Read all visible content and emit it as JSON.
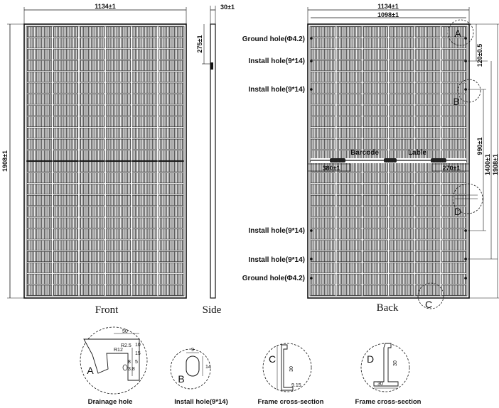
{
  "front": {
    "width_dim": "1134±1",
    "height_dim": "1908±1",
    "view_label": "Front"
  },
  "side": {
    "thickness_dim": "30±1",
    "jbox_dim": "275±1",
    "view_label": "Side"
  },
  "back": {
    "width_dim": "1134±1",
    "inner_width_dim": "1098±1",
    "view_label": "Back",
    "hole_labels": [
      "Ground hole(Φ4.2)",
      "Install hole(9*14)",
      "Install hole(9*14)",
      "Install hole(9*14)",
      "Install hole(9*14)",
      "Ground hole(Φ4.2)"
    ],
    "hole_offset_dim": "120±0.5",
    "install_span_dim": "990±1",
    "outer_span_dim": "1400±1",
    "full_span_dim": "1908±1",
    "barcode_label": "Barcode",
    "lable_label": "Lable",
    "barcode_dim": "380±1",
    "lable_dim": "270±1",
    "callouts": [
      "A",
      "B",
      "C",
      "D"
    ]
  },
  "details": [
    {
      "letter": "A",
      "caption": "Drainage hole",
      "dims": [
        "50",
        "R2.5",
        "R12",
        "10",
        "15",
        "8",
        "3.8",
        "5"
      ]
    },
    {
      "letter": "B",
      "caption": "Install hole(9*14)",
      "dims": [
        "9",
        "14"
      ]
    },
    {
      "letter": "C",
      "caption": "Frame cross-section",
      "dims": [
        "30",
        "9.15"
      ]
    },
    {
      "letter": "D",
      "caption": "Frame cross-section",
      "dims": [
        "30",
        "30"
      ]
    }
  ]
}
